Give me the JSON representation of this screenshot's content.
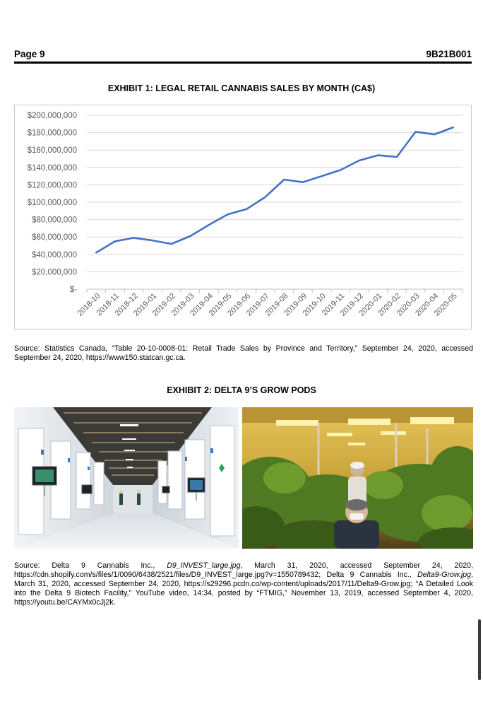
{
  "header": {
    "page_label": "Page 9",
    "doc_code": "9B21B001"
  },
  "exhibit1": {
    "title": "EXHIBIT 1: LEGAL RETAIL CANNABIS SALES BY MONTH (CA$)"
  },
  "chart_data": {
    "type": "line",
    "title": "",
    "xlabel": "",
    "ylabel": "",
    "x": [
      "2018-10",
      "2018-11",
      "2018-12",
      "2019-01",
      "2019-02",
      "2019-03",
      "2019-04",
      "2019-05",
      "2019-06",
      "2019-07",
      "2019-08",
      "2019-09",
      "2019-10",
      "2019-11",
      "2019-12",
      "2020-01",
      "2020-02",
      "2020-03",
      "2020-04",
      "2020-05"
    ],
    "series": [
      {
        "values": [
          42000000,
          55000000,
          59000000,
          56000000,
          52000000,
          61000000,
          74000000,
          86000000,
          92000000,
          106000000,
          126000000,
          123000000,
          130000000,
          137000000,
          148000000,
          154000000,
          152000000,
          181000000,
          178000000,
          186000000
        ]
      }
    ],
    "ylim": [
      0,
      200000000
    ],
    "y_ticks": [
      0,
      20000000,
      40000000,
      60000000,
      80000000,
      100000000,
      120000000,
      140000000,
      160000000,
      180000000,
      200000000
    ],
    "y_tick_labels": [
      "$-",
      "$20,000,000",
      "$40,000,000",
      "$60,000,000",
      "$80,000,000",
      "$100,000,000",
      "$120,000,000",
      "$140,000,000",
      "$160,000,000",
      "$180,000,000",
      "$200,000,000"
    ],
    "grid": true,
    "legend": "none",
    "line_color": "#4472c4"
  },
  "source1": {
    "text": "Source: Statistics Canada, “Table 20-10-0008-01: Retail Trade Sales by Province and Territory,” September 24, 2020, accessed September 24, 2020, https://www150.statcan.gc.ca."
  },
  "exhibit2": {
    "title": "EXHIBIT 2: DELTA 9’S GROW PODS"
  },
  "source2": {
    "p1": "Source: Delta 9 Cannabis Inc., ",
    "i1": "D9_INVEST_large.jpg",
    "p2": ", March 31, 2020, accessed September 24, 2020, https://cdn.shopify.com/s/files/1/0090/6438/2521/files/D9_INVEST_large.jpg?v=1550789432; Delta 9 Cannabis Inc., ",
    "i2": "Delta9-Grow.jpg",
    "p3": ", March 31, 2020, accessed September 24, 2020, https://s29296.pcdn.co/wp-content/uploads/2017/11/Delta9-Grow.jpg; “A Detailed Look into the Delta 9 Biotech Facility,” YouTube video, 14:34, posted by “FTMIG,” November 13, 2019, accessed September 4, 2020, https://youtu.be/CAYMx0cJj2k."
  }
}
